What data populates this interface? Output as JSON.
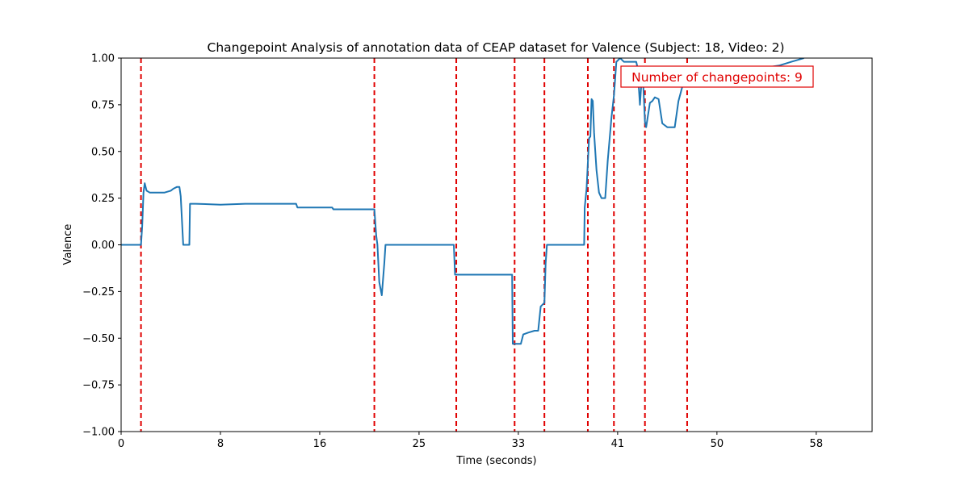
{
  "colors": {
    "series": "#1f77b4",
    "changepoint": "#e00000",
    "annotation": "#e00000",
    "axis": "#000000",
    "background": "#ffffff"
  },
  "chart_data": {
    "type": "line",
    "title": "Changepoint Analysis of annotation data of CEAP dataset for Valence (Subject: 18, Video: 2)",
    "xlabel": "Time (seconds)",
    "ylabel": "Valence",
    "xlim": [
      0,
      60.5
    ],
    "ylim": [
      -1.0,
      1.0
    ],
    "x_ticks": [
      {
        "value": 0,
        "label": "0"
      },
      {
        "value": 8,
        "label": "8"
      },
      {
        "value": 16,
        "label": "16"
      },
      {
        "value": 24,
        "label": "25"
      },
      {
        "value": 32,
        "label": "33"
      },
      {
        "value": 40,
        "label": "41"
      },
      {
        "value": 48,
        "label": "50"
      },
      {
        "value": 56,
        "label": "58"
      }
    ],
    "y_ticks": [
      {
        "value": 1.0,
        "label": "1.00"
      },
      {
        "value": 0.75,
        "label": "0.75"
      },
      {
        "value": 0.5,
        "label": "0.50"
      },
      {
        "value": 0.25,
        "label": "0.25"
      },
      {
        "value": 0.0,
        "label": "0.00"
      },
      {
        "value": -0.25,
        "label": "−0.25"
      },
      {
        "value": -0.5,
        "label": "−0.50"
      },
      {
        "value": -0.75,
        "label": "−0.75"
      },
      {
        "value": -1.0,
        "label": "−1.00"
      }
    ],
    "grid": false,
    "series": [
      {
        "points": [
          [
            0,
            0.0
          ],
          [
            1.6,
            0.0
          ],
          [
            1.7,
            0.1
          ],
          [
            1.8,
            0.28
          ],
          [
            1.9,
            0.33
          ],
          [
            2.05,
            0.29
          ],
          [
            2.3,
            0.28
          ],
          [
            3.5,
            0.28
          ],
          [
            4.0,
            0.29
          ],
          [
            4.2,
            0.3
          ],
          [
            4.5,
            0.31
          ],
          [
            4.7,
            0.31
          ],
          [
            4.8,
            0.26
          ],
          [
            5.0,
            0.0
          ],
          [
            5.4,
            0.0
          ],
          [
            5.5,
            0.0
          ],
          [
            5.55,
            0.22
          ],
          [
            6.0,
            0.22
          ],
          [
            8.0,
            0.215
          ],
          [
            10.0,
            0.22
          ],
          [
            12.0,
            0.22
          ],
          [
            14.1,
            0.22
          ],
          [
            14.2,
            0.2
          ],
          [
            17.0,
            0.2
          ],
          [
            17.1,
            0.19
          ],
          [
            20.4,
            0.19
          ],
          [
            20.55,
            0.05
          ],
          [
            20.65,
            0.0
          ],
          [
            20.8,
            -0.2
          ],
          [
            21.0,
            -0.27
          ],
          [
            21.2,
            -0.1
          ],
          [
            21.3,
            0.0
          ],
          [
            26.8,
            0.0
          ],
          [
            26.9,
            -0.16
          ],
          [
            28.0,
            -0.16
          ],
          [
            31.5,
            -0.16
          ],
          [
            31.55,
            -0.53
          ],
          [
            32.2,
            -0.53
          ],
          [
            32.4,
            -0.48
          ],
          [
            32.8,
            -0.47
          ],
          [
            33.3,
            -0.46
          ],
          [
            33.6,
            -0.46
          ],
          [
            33.8,
            -0.33
          ],
          [
            34.1,
            -0.31
          ],
          [
            34.2,
            -0.1
          ],
          [
            34.3,
            0.0
          ],
          [
            37.3,
            0.0
          ],
          [
            37.35,
            0.2
          ],
          [
            37.5,
            0.3
          ],
          [
            37.7,
            0.57
          ],
          [
            37.8,
            0.58
          ],
          [
            37.9,
            0.78
          ],
          [
            38.0,
            0.77
          ],
          [
            38.1,
            0.6
          ],
          [
            38.3,
            0.4
          ],
          [
            38.5,
            0.28
          ],
          [
            38.7,
            0.25
          ],
          [
            39.0,
            0.25
          ],
          [
            39.2,
            0.45
          ],
          [
            39.5,
            0.68
          ],
          [
            39.7,
            0.8
          ],
          [
            39.9,
            0.98
          ],
          [
            40.2,
            1.0
          ],
          [
            40.5,
            0.98
          ],
          [
            41.5,
            0.98
          ],
          [
            41.6,
            0.95
          ],
          [
            41.8,
            0.75
          ],
          [
            42.0,
            0.95
          ],
          [
            42.2,
            0.66
          ],
          [
            42.3,
            0.63
          ],
          [
            42.6,
            0.76
          ],
          [
            42.8,
            0.77
          ],
          [
            43.0,
            0.79
          ],
          [
            43.3,
            0.78
          ],
          [
            43.6,
            0.65
          ],
          [
            44.0,
            0.63
          ],
          [
            44.6,
            0.63
          ],
          [
            44.9,
            0.77
          ],
          [
            45.1,
            0.82
          ],
          [
            45.5,
            0.92
          ],
          [
            46.0,
            0.93
          ],
          [
            48.0,
            0.94
          ],
          [
            50.0,
            0.95
          ],
          [
            52.0,
            0.95
          ],
          [
            53.0,
            0.96
          ],
          [
            54.0,
            0.98
          ],
          [
            54.5,
            0.99
          ],
          [
            55.0,
            1.0
          ]
        ]
      }
    ],
    "changepoints": [
      1.6,
      20.4,
      27.0,
      31.7,
      34.1,
      37.6,
      39.7,
      42.2,
      45.6
    ],
    "annotation": {
      "text": "Number of changepoints: 9",
      "placement": "top-right"
    }
  }
}
